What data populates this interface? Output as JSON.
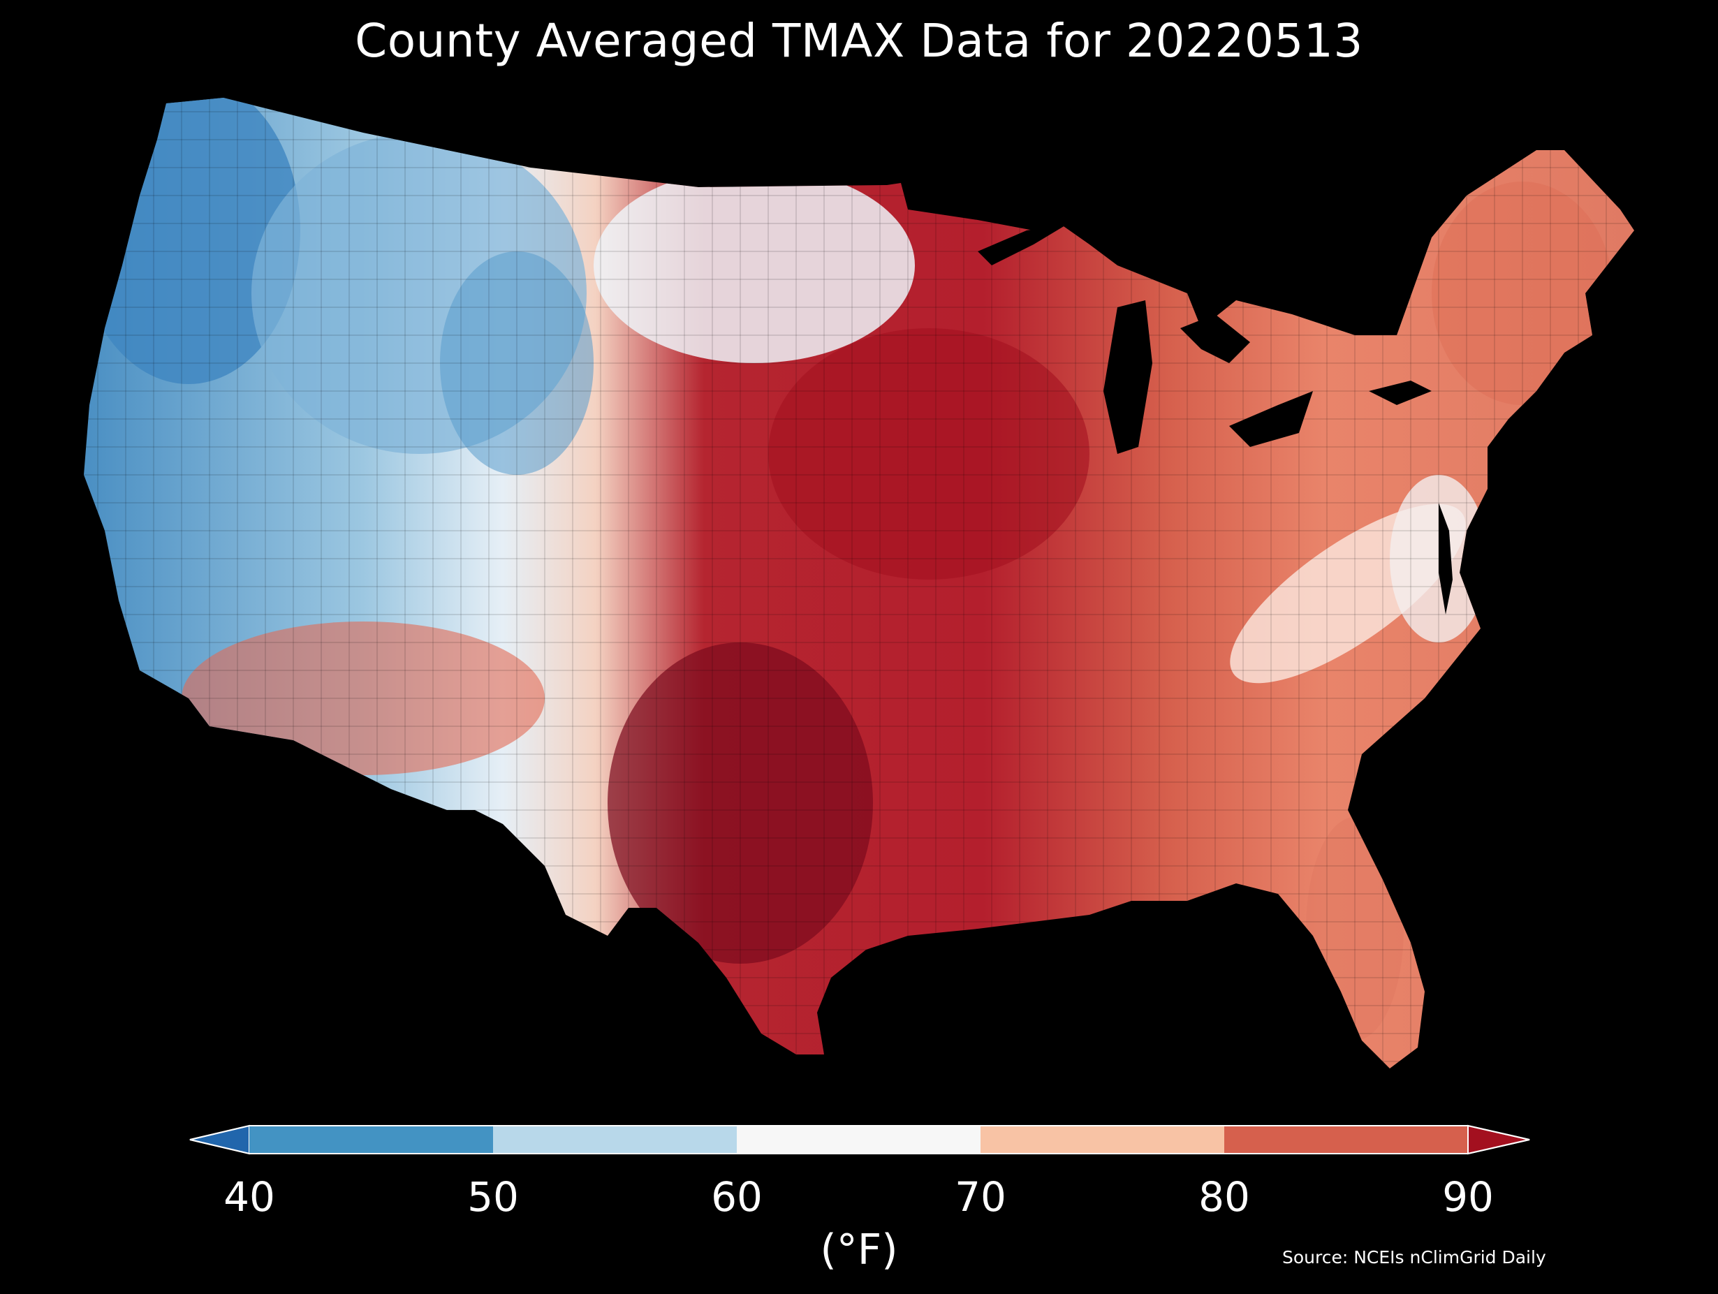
{
  "title": "County Averaged TMAX Data for 20220513",
  "colorbar": {
    "ticks": [
      "40",
      "50",
      "60",
      "70",
      "80",
      "90"
    ],
    "label": "(°F)",
    "extend": "both",
    "colors": [
      "#2166ac",
      "#4393c3",
      "#b8d8ea",
      "#f7f7f7",
      "#f8c3a5",
      "#d6604d",
      "#a3101f"
    ]
  },
  "source": "Source: NCEIs nClimGrid Daily"
}
